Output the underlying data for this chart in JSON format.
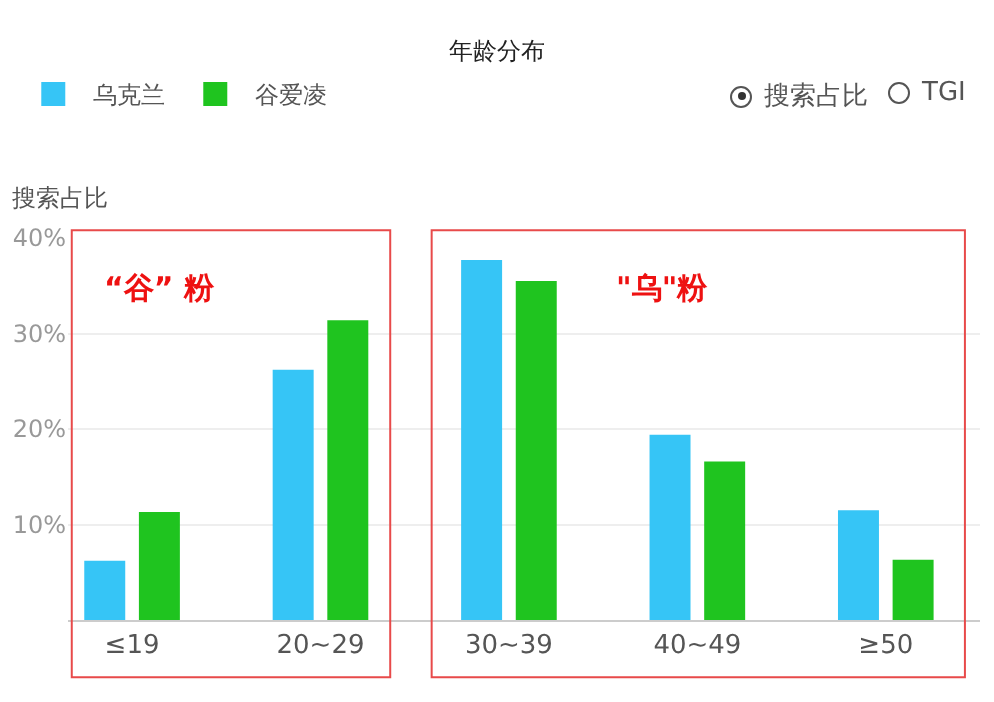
{
  "chart_data": {
    "type": "bar",
    "title": "年龄分布",
    "ylabel": "搜索占比",
    "categories": [
      "≤19",
      "20~29",
      "30~39",
      "40~49",
      "≥50"
    ],
    "series": [
      {
        "name": "乌克兰",
        "color": "#36c5f6",
        "values": [
          6.2,
          26.2,
          37.7,
          19.4,
          11.5
        ]
      },
      {
        "name": "谷爱凌",
        "color": "#1fc41f",
        "values": [
          11.3,
          31.4,
          35.5,
          16.6,
          6.3
        ]
      }
    ],
    "ylim": [
      0,
      40
    ],
    "yticks": [
      {
        "value": 0,
        "label": null
      },
      {
        "value": 10,
        "label": "10%"
      },
      {
        "value": 20,
        "label": "20%"
      },
      {
        "value": 30,
        "label": "30%"
      },
      {
        "value": 40,
        "label": "40%"
      }
    ],
    "grid": "y",
    "legend": "top left",
    "annotations": [
      "“谷” 粉",
      "\"乌\"粉",
      "搜索占比",
      "TGI"
    ]
  }
}
